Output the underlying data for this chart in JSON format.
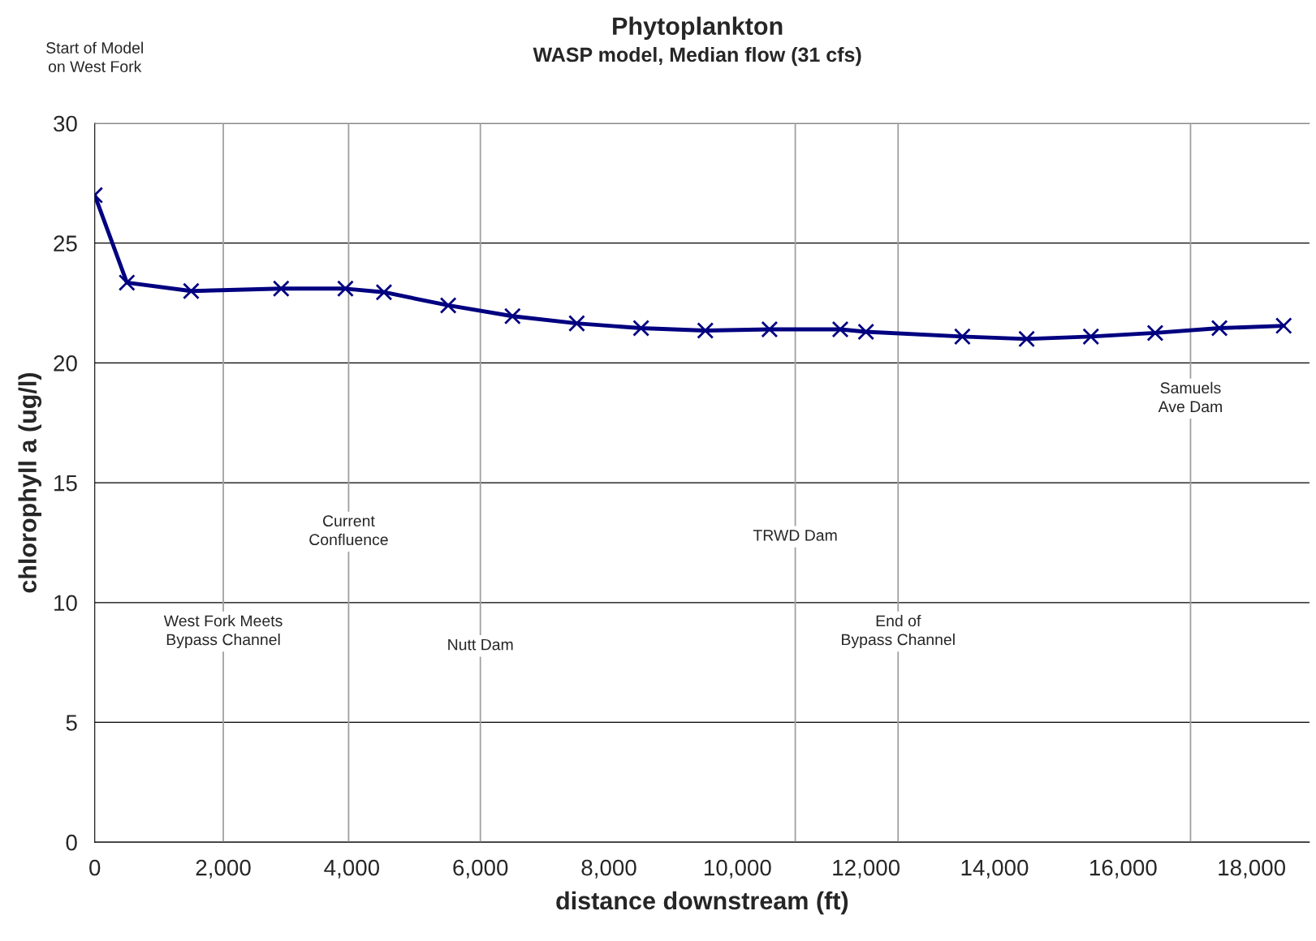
{
  "chart_data": {
    "type": "line",
    "title": "Phytoplankton",
    "subtitle": "WASP model, Median flow (31 cfs)",
    "xlabel": "distance downstream (ft)",
    "ylabel": "chlorophyll a (ug/l)",
    "x": [
      0,
      500,
      1500,
      2900,
      3900,
      4500,
      5500,
      6500,
      7500,
      8500,
      9500,
      10500,
      11600,
      12000,
      13500,
      14500,
      15500,
      16500,
      17500,
      18500
    ],
    "series": [
      {
        "color": "#000080",
        "values": [
          27.0,
          23.35,
          23.0,
          23.1,
          23.1,
          22.95,
          22.4,
          21.95,
          21.65,
          21.45,
          21.35,
          21.4,
          21.4,
          21.3,
          21.1,
          21.0,
          21.1,
          21.25,
          21.45,
          21.55
        ]
      }
    ],
    "xlim": [
      0,
      18900
    ],
    "ylim": [
      0,
      30
    ],
    "xticks": [
      0,
      {
        "value": 2000,
        "label": "2,000"
      },
      {
        "value": 4000,
        "label": "4,000"
      },
      {
        "value": 6000,
        "label": "6,000"
      },
      {
        "value": 8000,
        "label": "8,000"
      },
      {
        "value": 10000,
        "label": "10,000"
      },
      {
        "value": 12000,
        "label": "12,000"
      },
      {
        "value": 14000,
        "label": "14,000"
      },
      {
        "value": 16000,
        "label": "16,000"
      },
      {
        "value": 18000,
        "label": "18,000"
      }
    ],
    "yticks": [
      0,
      5,
      10,
      15,
      20,
      25,
      30
    ],
    "annotations": [
      "Start of Model\non West Fork"
    ],
    "ref_lines": [
      {
        "axis": "x",
        "value": 2000,
        "label": "West Fork Meets\nBypass Channel",
        "color": "#a0a0a0"
      },
      {
        "axis": "x",
        "value": 3950,
        "label": "Current\nConfluence",
        "color": "#a0a0a0"
      },
      {
        "axis": "x",
        "value": 6000,
        "label": "Nutt Dam",
        "color": "#a0a0a0"
      },
      {
        "axis": "x",
        "value": 10900,
        "label": "TRWD Dam",
        "color": "#a0a0a0"
      },
      {
        "axis": "x",
        "value": 12500,
        "label": "End of\nBypass Channel",
        "color": "#a0a0a0"
      },
      {
        "axis": "x",
        "value": 17050,
        "label": "Samuels\nAve Dam",
        "color": "#a0a0a0"
      }
    ],
    "grid": "y",
    "marker": "cross",
    "line_style": "solid",
    "legend": false
  }
}
